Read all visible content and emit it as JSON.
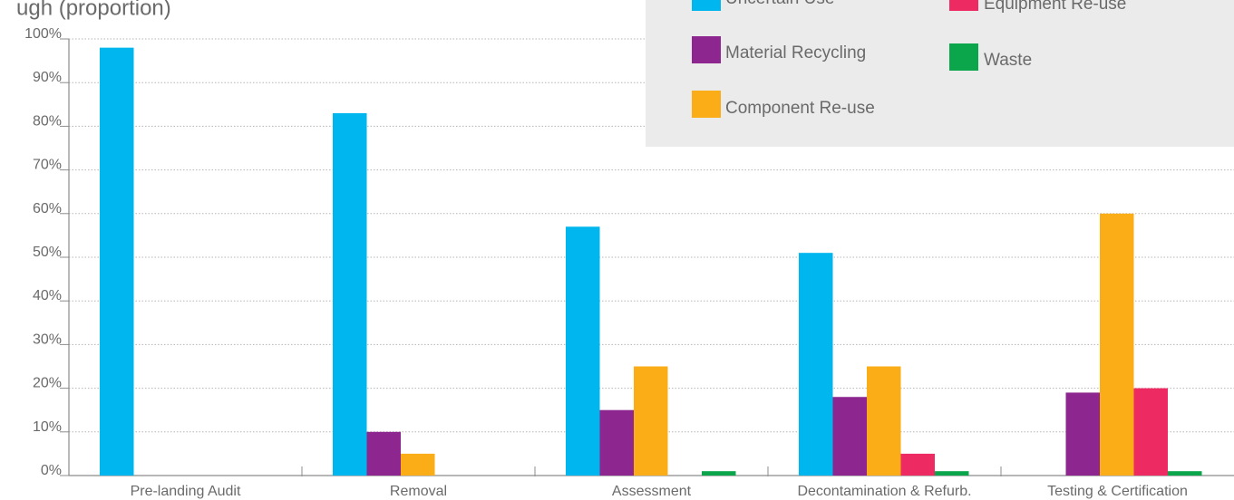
{
  "chart_data": {
    "type": "bar",
    "title": "ugh (proportion)",
    "categories": [
      "Pre-landing Audit",
      "Removal",
      "Assessment",
      "Decontamination & Refurb.",
      "Testing & Certification"
    ],
    "series": [
      {
        "name": "Uncertain Use",
        "color": "#00b6ee",
        "values": [
          98,
          83,
          57,
          51,
          0
        ]
      },
      {
        "name": "Material Recycling",
        "color": "#8d278f",
        "values": [
          0,
          10,
          15,
          18,
          19
        ]
      },
      {
        "name": "Component Re-use",
        "color": "#fbad18",
        "values": [
          0,
          5,
          25,
          25,
          60
        ]
      },
      {
        "name": "Equipment Re-use",
        "color": "#ee2a63",
        "values": [
          0,
          0,
          0,
          5,
          20
        ]
      },
      {
        "name": "Waste",
        "color": "#0ba64b",
        "values": [
          0,
          0,
          1,
          1,
          1
        ]
      }
    ],
    "yticks": [
      "0%",
      "10%",
      "20%",
      "30%",
      "40%",
      "50%",
      "60%",
      "70%",
      "80%",
      "90%",
      "100%"
    ],
    "ylim": [
      0,
      100
    ],
    "grid": true,
    "legend_position": "top-right"
  }
}
